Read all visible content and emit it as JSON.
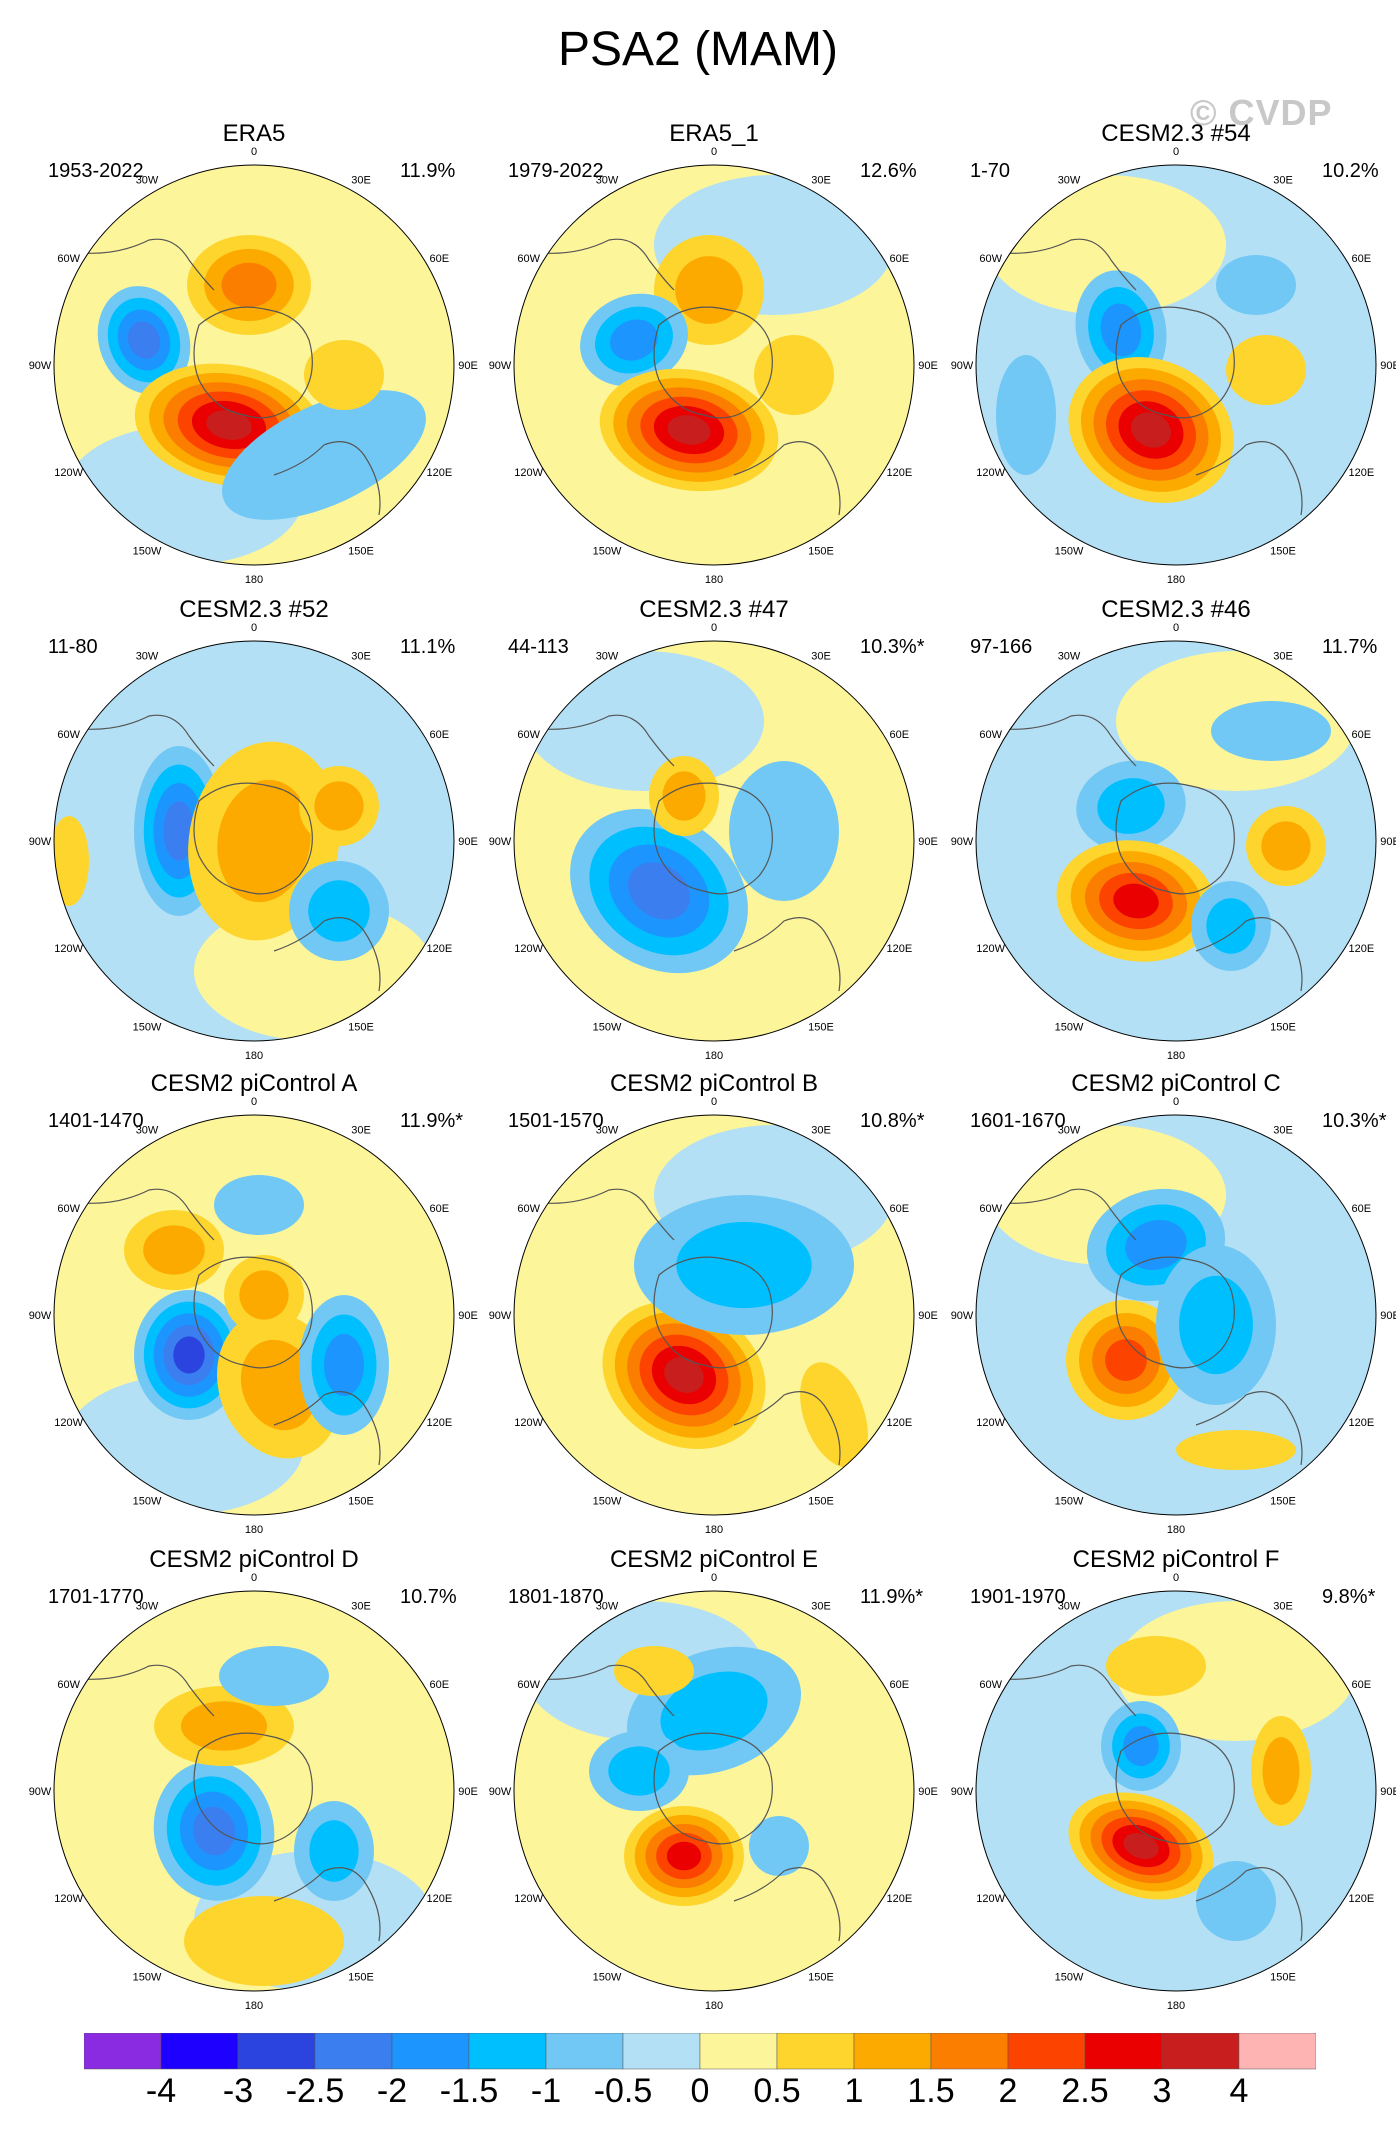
{
  "title": "PSA2 (MAM)",
  "watermark": "© CVDP",
  "colors": {
    "levels": [
      "#8a2be2",
      "#1e00ff",
      "#2b44e0",
      "#3a7ef0",
      "#1d95ff",
      "#00bfff",
      "#72c8f4",
      "#b3e0f4",
      "#fdf59a",
      "#fdd52c",
      "#fcaa00",
      "#fc7e00",
      "#fc4400",
      "#ea0000",
      "#c81e1e",
      "#ffb4b4"
    ],
    "coast": "#555555",
    "map_background": "#b3e0f4"
  },
  "colorbar": {
    "labels": [
      "-4",
      "-3",
      "-2.5",
      "-2",
      "-1.5",
      "-1",
      "-0.5",
      "0",
      "0.5",
      "1",
      "1.5",
      "2",
      "2.5",
      "3",
      "4"
    ]
  },
  "lon_labels": [
    "0",
    "30E",
    "60E",
    "90E",
    "120E",
    "150E",
    "180",
    "150W",
    "120W",
    "90W",
    "60W",
    "30W"
  ],
  "panels": [
    {
      "title": "ERA5",
      "years": "1953-2022",
      "pct": "11.9%"
    },
    {
      "title": "ERA5_1",
      "years": "1979-2022",
      "pct": "12.6%"
    },
    {
      "title": "CESM2.3 #54",
      "years": "1-70",
      "pct": "10.2%"
    },
    {
      "title": "CESM2.3 #52",
      "years": "11-80",
      "pct": "11.1%"
    },
    {
      "title": "CESM2.3 #47",
      "years": "44-113",
      "pct": "10.3%*"
    },
    {
      "title": "CESM2.3 #46",
      "years": "97-166",
      "pct": "11.7%"
    },
    {
      "title": "CESM2 piControl A",
      "years": "1401-1470",
      "pct": "11.9%*"
    },
    {
      "title": "CESM2 piControl B",
      "years": "1501-1570",
      "pct": "10.8%*"
    },
    {
      "title": "CESM2 piControl C",
      "years": "1601-1670",
      "pct": "10.3%*"
    },
    {
      "title": "CESM2 piControl D",
      "years": "1701-1770",
      "pct": "10.7%"
    },
    {
      "title": "CESM2 piControl E",
      "years": "1801-1870",
      "pct": "11.9%*"
    },
    {
      "title": "CESM2 piControl F",
      "years": "1901-1970",
      "pct": "9.8%*"
    }
  ]
}
